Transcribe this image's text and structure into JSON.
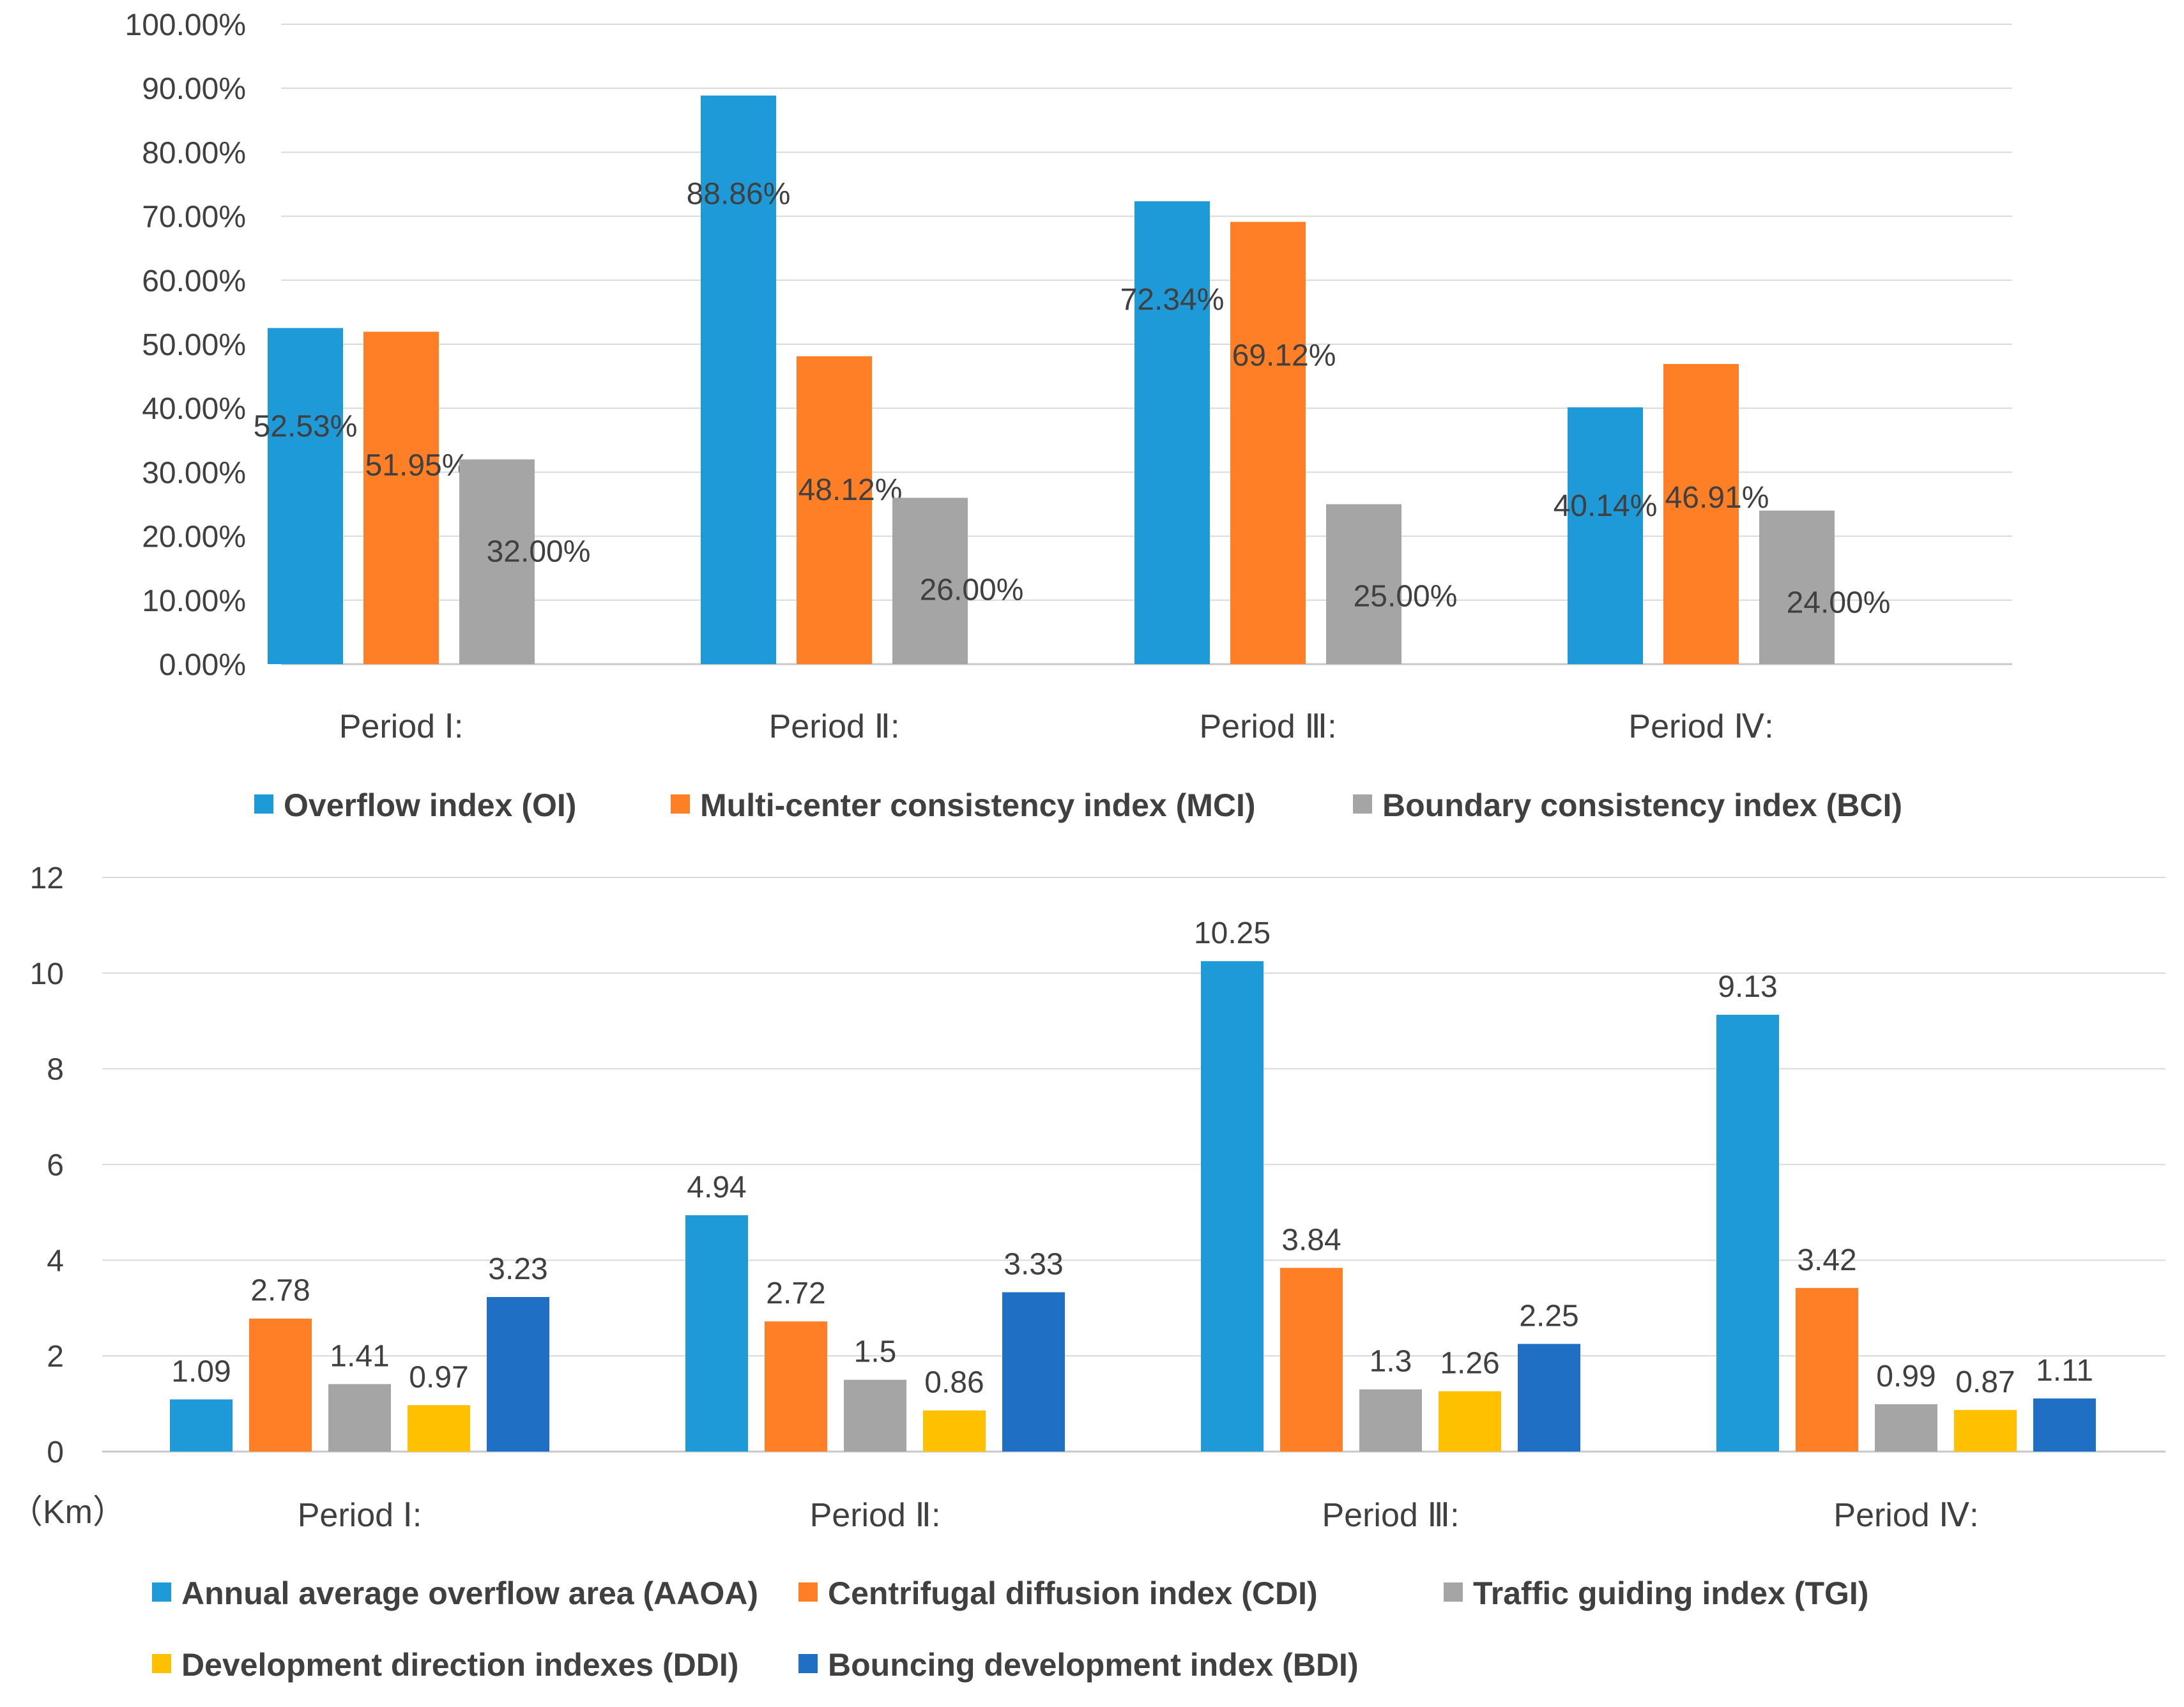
{
  "chart_data": [
    {
      "type": "bar",
      "categories": [
        "Period Ⅰ:",
        "Period Ⅱ:",
        "Period Ⅲ:",
        "Period Ⅳ:"
      ],
      "series": [
        {
          "name": "Overflow index (OI)",
          "color": "#1F9AD8",
          "values": [
            52.53,
            88.86,
            72.34,
            40.14
          ],
          "labels": [
            "52.53%",
            "88.86%",
            "72.34%",
            "40.14%"
          ]
        },
        {
          "name": "Multi-center consistency index (MCI)",
          "color": "#FF7F27",
          "values": [
            51.95,
            48.12,
            69.12,
            46.91
          ],
          "labels": [
            "51.95%",
            "48.12%",
            "69.12%",
            "46.91%"
          ]
        },
        {
          "name": "Boundary consistency index (BCI)",
          "color": "#A5A5A5",
          "values": [
            32.0,
            26.0,
            25.0,
            24.0
          ],
          "labels": [
            "32.00%",
            "26.00%",
            "25.00%",
            "24.00%"
          ]
        }
      ],
      "ylim": [
        0,
        100
      ],
      "yticks": [
        "0.00%",
        "10.00%",
        "20.00%",
        "30.00%",
        "40.00%",
        "50.00%",
        "60.00%",
        "70.00%",
        "80.00%",
        "90.00%",
        "100.00%"
      ],
      "title": "",
      "xlabel": "",
      "ylabel": "",
      "grid": true,
      "legend": "bottom"
    },
    {
      "type": "bar",
      "categories": [
        "Period Ⅰ:",
        "Period Ⅱ:",
        "Period Ⅲ:",
        "Period Ⅳ:"
      ],
      "series": [
        {
          "name": "Annual average overflow area (AAOA)",
          "color": "#1F9AD8",
          "values": [
            1.09,
            4.94,
            10.25,
            9.13
          ],
          "labels": [
            "1.09",
            "4.94",
            "10.25",
            "9.13"
          ]
        },
        {
          "name": "Centrifugal diffusion index (CDI)",
          "color": "#FF7F27",
          "values": [
            2.78,
            2.72,
            3.84,
            3.42
          ],
          "labels": [
            "2.78",
            "2.72",
            "3.84",
            "3.42"
          ]
        },
        {
          "name": "Traffic guiding index (TGI)",
          "color": "#A5A5A5",
          "values": [
            1.41,
            1.5,
            1.3,
            0.99
          ],
          "labels": [
            "1.41",
            "1.5",
            "1.3",
            "0.99"
          ]
        },
        {
          "name": "Development direction indexes (DDI)",
          "color": "#FFC000",
          "values": [
            0.97,
            0.86,
            1.26,
            0.87
          ],
          "labels": [
            "0.97",
            "0.86",
            "1.26",
            "0.87"
          ]
        },
        {
          "name": "Bouncing development index (BDI)",
          "color": "#1F6FC5",
          "values": [
            3.23,
            3.33,
            2.25,
            1.11
          ],
          "labels": [
            "3.23",
            "3.33",
            "2.25",
            "1.11"
          ]
        }
      ],
      "ylim": [
        0,
        12
      ],
      "yticks": [
        "0",
        "2",
        "4",
        "6",
        "8",
        "10",
        "12"
      ],
      "unit_label": "（Km）",
      "title": "",
      "xlabel": "",
      "ylabel": "",
      "grid": true,
      "legend": "bottom"
    }
  ]
}
